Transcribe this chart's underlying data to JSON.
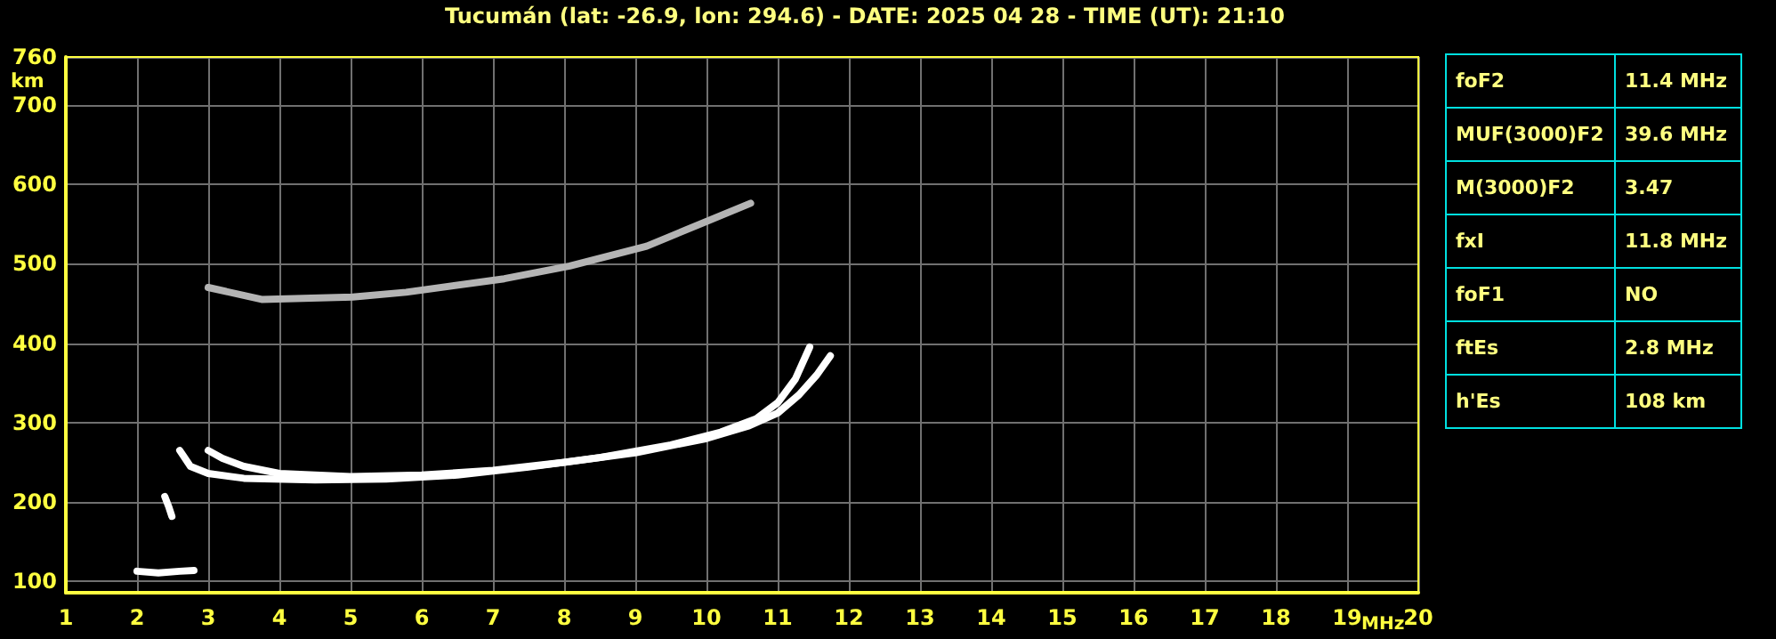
{
  "chart_data": [
    {
      "type": "line",
      "title": "Tucumán (lat: -26.9, lon: 294.6) - DATE: 2025 04 28 - TIME (UT): 21:10",
      "xlabel": "MHz",
      "ylabel": "km",
      "xlim": [
        1,
        20
      ],
      "xticks": [
        1,
        2,
        3,
        4,
        5,
        6,
        7,
        8,
        9,
        10,
        11,
        12,
        13,
        14,
        15,
        16,
        17,
        18,
        19,
        20
      ],
      "ylim": [
        86,
        760
      ],
      "yticks": [
        100,
        200,
        300,
        400,
        500,
        600,
        700,
        760
      ],
      "grid": true,
      "marker": "none",
      "line_style": "solid",
      "series": [
        {
          "color": "#ffffff",
          "x": [
            2.6,
            2.75,
            3.0,
            3.5,
            4.5,
            5.5,
            6.5,
            7.5,
            8.5,
            9.5,
            10.2,
            10.7,
            11.0,
            11.25,
            11.45
          ],
          "values": [
            265,
            245,
            236,
            230,
            228,
            229,
            234,
            244,
            256,
            272,
            288,
            305,
            325,
            355,
            395
          ]
        },
        {
          "color": "#ffffff",
          "x": [
            3.0,
            3.2,
            3.5,
            4.0,
            5.0,
            6.0,
            7.0,
            8.0,
            9.0,
            10.0,
            10.6,
            11.0,
            11.3,
            11.55,
            11.74
          ],
          "values": [
            265,
            255,
            245,
            236,
            232,
            234,
            240,
            250,
            262,
            280,
            296,
            312,
            335,
            360,
            384
          ]
        },
        {
          "color": "#ffffff",
          "x": [
            2.0,
            2.3,
            2.6,
            2.8
          ],
          "values": [
            113,
            111,
            113,
            114
          ]
        },
        {
          "color": "#ffffff",
          "x": [
            2.39,
            2.45,
            2.49
          ],
          "values": [
            207,
            193,
            182
          ]
        },
        {
          "color": "#b4b4b4",
          "x": [
            3.0,
            3.75,
            5.03,
            5.78,
            7.16,
            8.08,
            9.16,
            10.62
          ],
          "values": [
            470,
            455,
            458,
            464,
            481,
            497,
            522,
            576
          ]
        }
      ]
    },
    {
      "type": "other",
      "categories": [
        "foF2",
        "MUF(3000)F2",
        "M(3000)F2",
        "fxI",
        "foF1",
        "ftEs",
        "h'Es"
      ],
      "value_labels": [
        "11.4 MHz",
        "39.6 MHz",
        "3.47",
        "11.8 MHz",
        "NO",
        "2.8 MHz",
        "108 km"
      ]
    }
  ]
}
